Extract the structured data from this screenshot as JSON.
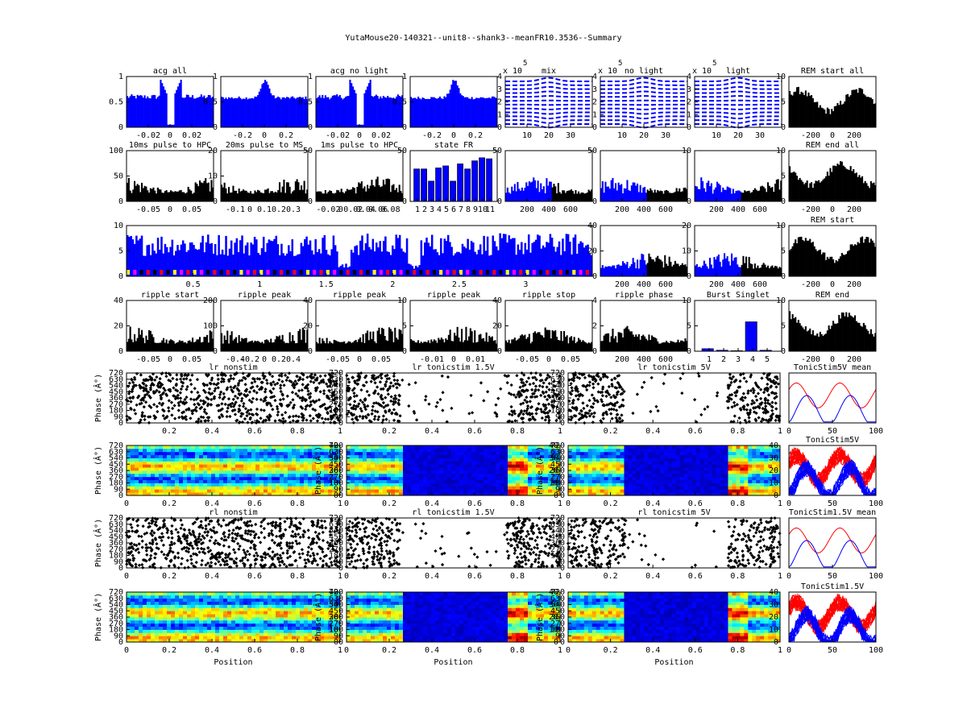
{
  "title": "YutaMouse20-140321--unit8--shank3--meanFR10.3536--Summary",
  "colors": {
    "blue": "#0000ff",
    "black": "#000000",
    "red": "#ff0000",
    "yellow": "#ffff00",
    "magenta": "#ff00ff"
  },
  "chart_data": [
    {
      "type": "area",
      "title": "acg all",
      "xticks": [
        "-0.02",
        "0",
        "0.02"
      ],
      "yticks": [
        "0",
        "0.5",
        "1"
      ],
      "ylim": [
        0,
        1
      ],
      "series": [
        {
          "color": "blue",
          "shape": "acg-trough"
        }
      ]
    },
    {
      "type": "area",
      "title": "",
      "xticks": [
        "-0.2",
        "0",
        "0.2"
      ],
      "yticks": [
        "0",
        "0.5",
        "1"
      ],
      "ylim": [
        0,
        1
      ],
      "series": [
        {
          "color": "blue",
          "shape": "acg-peak"
        }
      ]
    },
    {
      "type": "area",
      "title": "acg no light",
      "xticks": [
        "-0.02",
        "0",
        "0.02"
      ],
      "yticks": [
        "0",
        "0.5",
        "1"
      ],
      "ylim": [
        0,
        1
      ],
      "series": [
        {
          "color": "blue",
          "shape": "acg-trough"
        }
      ]
    },
    {
      "type": "area",
      "title": "",
      "xticks": [
        "-0.2",
        "0",
        "0.2"
      ],
      "yticks": [
        "0",
        "0.5",
        "1"
      ],
      "ylim": [
        0,
        1
      ],
      "series": [
        {
          "color": "blue",
          "shape": "acg-peak"
        }
      ]
    },
    {
      "type": "line",
      "title": "mix",
      "exponent_label": "x 10",
      "exponent": "5",
      "xticks": [
        "10",
        "20",
        "30"
      ],
      "yticks": [
        "0",
        "1",
        "2",
        "3",
        "4"
      ],
      "series": [
        {
          "color": "blue",
          "style": "dashed-waveforms"
        }
      ]
    },
    {
      "type": "line",
      "title": "no light",
      "exponent_label": "x 10",
      "exponent": "5",
      "xticks": [
        "10",
        "20",
        "30"
      ],
      "yticks": [
        "0",
        "1",
        "2",
        "3",
        "4"
      ],
      "series": [
        {
          "color": "blue",
          "style": "dashed-waveforms"
        }
      ]
    },
    {
      "type": "line",
      "title": "light",
      "exponent_label": "x 10",
      "exponent": "5",
      "xticks": [
        "10",
        "20",
        "30"
      ],
      "yticks": [
        "0",
        "1",
        "2",
        "3",
        "4"
      ],
      "series": [
        {
          "color": "blue",
          "style": "dashed-waveforms"
        }
      ]
    },
    {
      "type": "area",
      "title": "REM start all",
      "xticks": [
        "-200",
        "0",
        "200"
      ],
      "yticks": [
        "0",
        "5",
        "10"
      ],
      "ylim": [
        0,
        10
      ],
      "series": [
        {
          "color": "black"
        }
      ]
    },
    {
      "type": "bar",
      "title": "10ms pulse to HPC",
      "xticks": [
        "-0.05",
        "0",
        "0.05"
      ],
      "yticks": [
        "0",
        "50",
        "100"
      ],
      "ylim": [
        0,
        100
      ],
      "series": [
        {
          "color": "black"
        }
      ]
    },
    {
      "type": "bar",
      "title": "20ms pulse to MS",
      "xticks": [
        "-0.1",
        "0",
        "0.1",
        "0.2",
        "0.3"
      ],
      "yticks": [
        "0",
        "10",
        "20"
      ],
      "ylim": [
        0,
        20
      ],
      "series": [
        {
          "color": "black"
        }
      ]
    },
    {
      "type": "bar",
      "title": "1ms pulse to HPC",
      "xticks": [
        "-0.02",
        "0",
        "0.02",
        "0.04",
        "0.06",
        "0.08"
      ],
      "yticks": [
        "0",
        "50"
      ],
      "ylim": [
        0,
        100
      ],
      "series": [
        {
          "color": "black"
        }
      ]
    },
    {
      "type": "bar",
      "title": "state FR",
      "categories": [
        "1",
        "2",
        "3",
        "4",
        "5",
        "6",
        "7",
        "8",
        "9",
        "10",
        "11"
      ],
      "values": [
        32,
        32,
        20,
        33,
        35,
        20,
        37,
        32,
        40,
        43,
        42
      ],
      "yticks": [
        "0",
        "50"
      ],
      "ylim": [
        0,
        50
      ],
      "series": [
        {
          "color": "blue"
        }
      ]
    },
    {
      "type": "bar",
      "title": "",
      "xticks": [
        "200",
        "400",
        "600"
      ],
      "yticks": [
        "0",
        "50"
      ],
      "ylim": [
        0,
        100
      ],
      "series": [
        {
          "color": "blue"
        },
        {
          "color": "black"
        }
      ]
    },
    {
      "type": "bar",
      "title": "",
      "xticks": [
        "200",
        "400",
        "600"
      ],
      "yticks": [
        "0",
        "50"
      ],
      "ylim": [
        0,
        100
      ],
      "series": [
        {
          "color": "blue"
        },
        {
          "color": "black"
        }
      ]
    },
    {
      "type": "bar",
      "title": "",
      "xticks": [
        "200",
        "400",
        "600"
      ],
      "yticks": [
        "0",
        "10"
      ],
      "ylim": [
        0,
        20
      ],
      "series": [
        {
          "color": "blue"
        },
        {
          "color": "black"
        }
      ]
    },
    {
      "type": "area",
      "title": "REM end all",
      "xticks": [
        "-200",
        "0",
        "200"
      ],
      "yticks": [
        "0",
        "5",
        "10"
      ],
      "ylim": [
        0,
        10
      ],
      "series": [
        {
          "color": "black"
        }
      ]
    },
    {
      "type": "bar",
      "title": "",
      "xticks": [
        "0.5",
        "1",
        "1.5",
        "2",
        "2.5",
        "3"
      ],
      "yticks": [
        "0",
        "5",
        "10"
      ],
      "ylim": [
        0,
        12
      ],
      "series": [
        {
          "color": "blue"
        }
      ]
    },
    {
      "type": "bar",
      "title": "",
      "xticks": [
        "200",
        "400",
        "600"
      ],
      "yticks": [
        "0",
        "20",
        "40"
      ],
      "ylim": [
        0,
        40
      ],
      "series": [
        {
          "color": "blue"
        },
        {
          "color": "black"
        }
      ]
    },
    {
      "type": "bar",
      "title": "",
      "xticks": [
        "200",
        "400",
        "600"
      ],
      "yticks": [
        "0",
        "10",
        "20"
      ],
      "ylim": [
        0,
        20
      ],
      "series": [
        {
          "color": "blue"
        },
        {
          "color": "black"
        }
      ]
    },
    {
      "type": "area",
      "title": "REM start",
      "xticks": [
        "-200",
        "0",
        "200"
      ],
      "yticks": [
        "0",
        "5",
        "10"
      ],
      "ylim": [
        0,
        10
      ],
      "series": [
        {
          "color": "black"
        }
      ]
    },
    {
      "type": "bar",
      "title": "ripple start",
      "xticks": [
        "-0.05",
        "0",
        "0.05"
      ],
      "yticks": [
        "0",
        "20",
        "40"
      ],
      "ylim": [
        0,
        40
      ],
      "series": [
        {
          "color": "black"
        }
      ]
    },
    {
      "type": "bar",
      "title": "ripple peak",
      "xticks": [
        "-0.4",
        "-0.2",
        "0",
        "0.2",
        "0.4"
      ],
      "yticks": [
        "0",
        "100",
        "200"
      ],
      "ylim": [
        0,
        200
      ],
      "series": [
        {
          "color": "black"
        }
      ]
    },
    {
      "type": "bar",
      "title": "ripple peak",
      "xticks": [
        "-0.05",
        "0",
        "0.05"
      ],
      "yticks": [
        "0",
        "20",
        "40"
      ],
      "ylim": [
        0,
        40
      ],
      "series": [
        {
          "color": "black"
        }
      ]
    },
    {
      "type": "bar",
      "title": "ripple peak",
      "xticks": [
        "-0.01",
        "0",
        "0.01"
      ],
      "yticks": [
        "0",
        "5",
        "10"
      ],
      "ylim": [
        0,
        10
      ],
      "series": [
        {
          "color": "black"
        }
      ]
    },
    {
      "type": "bar",
      "title": "ripple stop",
      "xticks": [
        "-0.05",
        "0",
        "0.05"
      ],
      "yticks": [
        "0",
        "20",
        "40"
      ],
      "ylim": [
        0,
        40
      ],
      "series": [
        {
          "color": "black"
        }
      ]
    },
    {
      "type": "bar",
      "title": "ripple phase",
      "xticks": [
        "200",
        "400",
        "600"
      ],
      "yticks": [
        "0",
        "2",
        "4"
      ],
      "ylim": [
        0,
        4
      ],
      "series": [
        {
          "color": "black"
        }
      ]
    },
    {
      "type": "bar",
      "title": "Burst Singlet",
      "categories": [
        "1",
        "2",
        "3",
        "4",
        "5"
      ],
      "values": [
        0.5,
        0.2,
        0.1,
        5.8,
        0.2
      ],
      "yticks": [
        "0",
        "5",
        "10"
      ],
      "ylim": [
        0,
        10
      ],
      "series": [
        {
          "color": "blue"
        }
      ]
    },
    {
      "type": "area",
      "title": "REM end",
      "xticks": [
        "-200",
        "0",
        "200"
      ],
      "yticks": [
        "0",
        "5",
        "10"
      ],
      "ylim": [
        0,
        10
      ],
      "series": [
        {
          "color": "black"
        }
      ]
    },
    {
      "type": "scatter",
      "title": "lr nonstim",
      "xlabel": "",
      "ylabel": "Phase (Â°)",
      "xticks": [
        "0.2",
        "0.4",
        "0.6",
        "0.8",
        "1"
      ],
      "yticks": [
        "0",
        "90",
        "180",
        "270",
        "360",
        "450",
        "540",
        "630",
        "720"
      ],
      "xlim": [
        0,
        1
      ],
      "ylim": [
        0,
        720
      ],
      "gaps": []
    },
    {
      "type": "scatter",
      "title": "lr tonicstim 1.5V",
      "xlabel": "",
      "ylabel": "",
      "xticks": [
        "0.2",
        "0.4",
        "0.6",
        "0.8",
        "1"
      ],
      "yticks": [
        "0",
        "90",
        "180",
        "270",
        "360",
        "450",
        "540",
        "630",
        "720"
      ],
      "xlim": [
        0,
        1
      ],
      "ylim": [
        0,
        720
      ],
      "gaps": [
        [
          0.25,
          0.75
        ]
      ]
    },
    {
      "type": "scatter",
      "title": "lr tonicstim 5V",
      "xlabel": "",
      "ylabel": "",
      "xticks": [
        "0.2",
        "0.4",
        "0.6",
        "0.8",
        "1"
      ],
      "yticks": [
        "0",
        "90",
        "180",
        "270",
        "360",
        "450",
        "540",
        "630",
        "720"
      ],
      "xlim": [
        0,
        1
      ],
      "ylim": [
        0,
        720
      ],
      "gaps": [
        [
          0.27,
          0.75
        ]
      ]
    },
    {
      "type": "line",
      "title": "TonicStim5V mean",
      "xticks": [
        "0",
        "50",
        "100"
      ],
      "series": [
        {
          "color": "red"
        },
        {
          "color": "blue"
        }
      ]
    },
    {
      "type": "heatmap",
      "title": "",
      "ylabel": "Phase (Â°)",
      "xticks": [
        "0",
        "0.2",
        "0.4",
        "0.6",
        "0.8",
        "1"
      ],
      "yticks": [
        "0",
        "90",
        "180",
        "270",
        "360",
        "450",
        "540",
        "630",
        "720"
      ],
      "cticks": [
        "0",
        "10",
        "20",
        "30",
        "40"
      ],
      "gaps": []
    },
    {
      "type": "heatmap",
      "title": "",
      "ylabel": "Phase (Â°)",
      "xticks": [
        "0",
        "0.2",
        "0.4",
        "0.6",
        "0.8",
        "1"
      ],
      "yticks": [
        "0",
        "90",
        "180",
        "270",
        "360",
        "450",
        "540",
        "630",
        "720"
      ],
      "cticks": [
        "0",
        "10",
        "20",
        "30",
        "40"
      ],
      "gaps": [
        [
          0.27,
          0.75
        ]
      ]
    },
    {
      "type": "heatmap",
      "title": "",
      "ylabel": "Phase (Â°)",
      "xticks": [
        "0",
        "0.2",
        "0.4",
        "0.6",
        "0.8",
        "1"
      ],
      "yticks": [
        "0",
        "90",
        "180",
        "270",
        "360",
        "450",
        "540",
        "630",
        "720"
      ],
      "cticks": [
        "0",
        "10",
        "20",
        "30",
        "40"
      ],
      "gaps": [
        [
          0.27,
          0.75
        ]
      ]
    },
    {
      "type": "line",
      "title": "TonicStim5V",
      "xticks": [
        "0",
        "50",
        "100"
      ],
      "series": [
        {
          "color": "red"
        },
        {
          "color": "blue"
        }
      ]
    },
    {
      "type": "scatter",
      "title": "rl nonstim",
      "ylabel": "Phase (Â°)",
      "xticks": [
        "0",
        "0.2",
        "0.4",
        "0.6",
        "0.8",
        "1"
      ],
      "yticks": [
        "0",
        "90",
        "180",
        "270",
        "360",
        "450",
        "540",
        "630",
        "720"
      ],
      "xlim": [
        0,
        1
      ],
      "ylim": [
        0,
        720
      ],
      "gaps": []
    },
    {
      "type": "scatter",
      "title": "rl tonicstim 1.5V",
      "ylabel": "",
      "xticks": [
        "0",
        "0.2",
        "0.4",
        "0.6",
        "0.8",
        "1"
      ],
      "yticks": [
        "0",
        "90",
        "180",
        "270",
        "360",
        "450",
        "540",
        "630",
        "720"
      ],
      "xlim": [
        0,
        1
      ],
      "ylim": [
        0,
        720
      ],
      "gaps": [
        [
          0.25,
          0.75
        ]
      ]
    },
    {
      "type": "scatter",
      "title": "rl tonicstim 5V",
      "ylabel": "",
      "xticks": [
        "0",
        "0.2",
        "0.4",
        "0.6",
        "0.8",
        "1"
      ],
      "yticks": [
        "0",
        "90",
        "180",
        "270",
        "360",
        "450",
        "540",
        "630",
        "720"
      ],
      "xlim": [
        0,
        1
      ],
      "ylim": [
        0,
        720
      ],
      "gaps": [
        [
          0.27,
          0.75
        ]
      ]
    },
    {
      "type": "line",
      "title": "TonicStim1.5V mean",
      "xticks": [
        "0",
        "50",
        "100"
      ],
      "series": [
        {
          "color": "red"
        },
        {
          "color": "blue"
        }
      ]
    },
    {
      "type": "heatmap",
      "title": "",
      "ylabel": "Phase (Â°)",
      "xlabel": "Position",
      "xticks": [
        "0",
        "0.2",
        "0.4",
        "0.6",
        "0.8",
        "1"
      ],
      "yticks": [
        "0",
        "90",
        "180",
        "270",
        "360",
        "450",
        "540",
        "630",
        "720"
      ],
      "cticks": [
        "0",
        "10",
        "20",
        "30",
        "40"
      ],
      "gaps": []
    },
    {
      "type": "heatmap",
      "title": "",
      "ylabel": "Phase (Â°)",
      "xlabel": "Position",
      "xticks": [
        "0",
        "0.2",
        "0.4",
        "0.6",
        "0.8",
        "1"
      ],
      "yticks": [
        "0",
        "90",
        "180",
        "270",
        "360",
        "450",
        "540",
        "630",
        "720"
      ],
      "cticks": [
        "0",
        "10",
        "20",
        "30",
        "40"
      ],
      "gaps": [
        [
          0.27,
          0.75
        ]
      ]
    },
    {
      "type": "heatmap",
      "title": "",
      "ylabel": "Phase (Â°)",
      "xlabel": "Position",
      "xticks": [
        "0",
        "0.2",
        "0.4",
        "0.6",
        "0.8",
        "1"
      ],
      "yticks": [
        "0",
        "90",
        "180",
        "270",
        "360",
        "450",
        "540",
        "630",
        "720"
      ],
      "cticks": [
        "0",
        "10",
        "20",
        "30",
        "40"
      ],
      "gaps": [
        [
          0.27,
          0.75
        ]
      ]
    },
    {
      "type": "line",
      "title": "TonicStim1.5V",
      "xticks": [
        "0",
        "50",
        "100"
      ],
      "series": [
        {
          "color": "red"
        },
        {
          "color": "blue"
        }
      ]
    }
  ]
}
